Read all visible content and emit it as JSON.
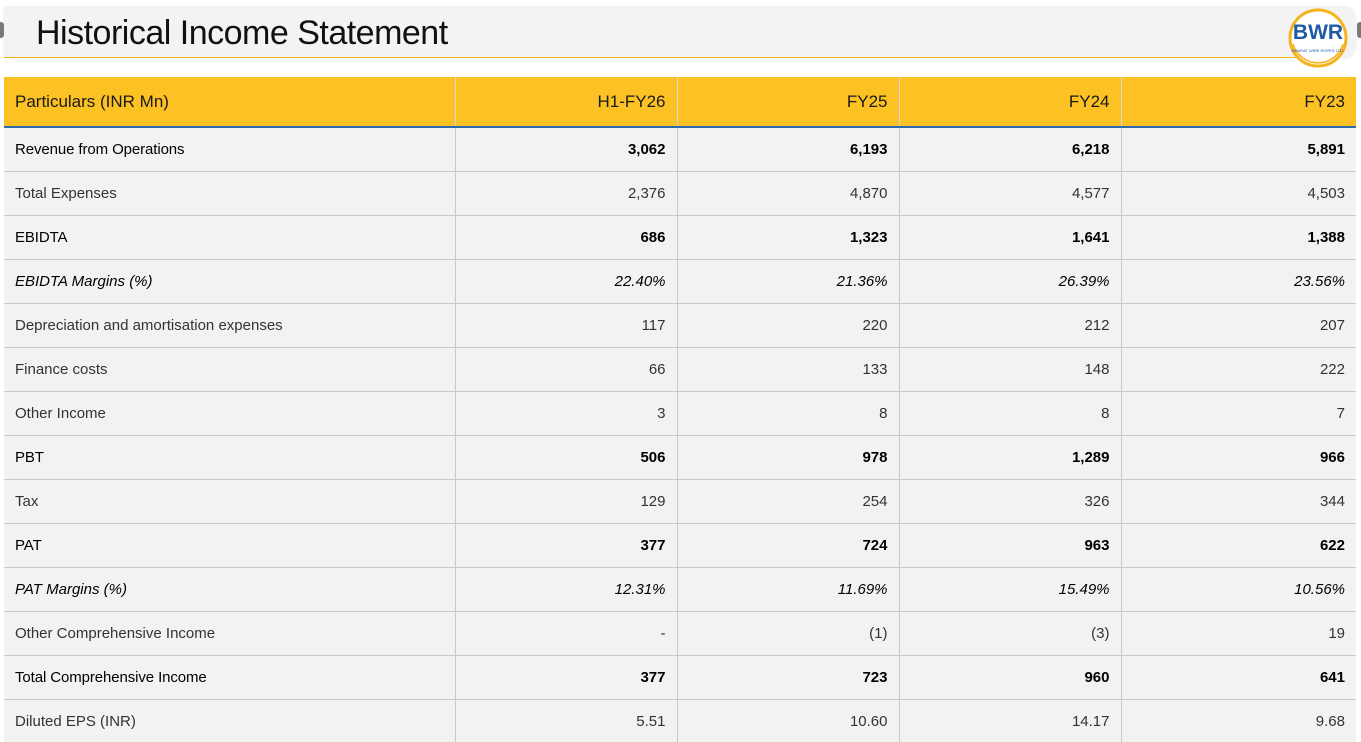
{
  "page": {
    "title": "Historical Income Statement"
  },
  "logo": {
    "text": "BWR",
    "subtext": "BHARAT WIRE ROPES LTD.",
    "colors": {
      "text": "#1f5aa6",
      "ring": "#f5b41e"
    }
  },
  "table": {
    "columns": [
      "Particulars (INR Mn)",
      "H1-FY26",
      "FY25",
      "FY24",
      "FY23"
    ],
    "rows": [
      {
        "label": "Revenue from Operations",
        "values": [
          "3,062",
          "6,193",
          "6,218",
          "5,891"
        ],
        "style": "bold"
      },
      {
        "label": "Total Expenses",
        "values": [
          "2,376",
          "4,870",
          "4,577",
          "4,503"
        ],
        "style": "light"
      },
      {
        "label": "EBIDTA",
        "values": [
          "686",
          "1,323",
          "1,641",
          "1,388"
        ],
        "style": "bold"
      },
      {
        "label": "EBIDTA Margins (%)",
        "values": [
          "22.40%",
          "21.36%",
          "26.39%",
          "23.56%"
        ],
        "style": "italic"
      },
      {
        "label": "Depreciation and amortisation expenses",
        "values": [
          "117",
          "220",
          "212",
          "207"
        ],
        "style": "light"
      },
      {
        "label": "Finance costs",
        "values": [
          "66",
          "133",
          "148",
          "222"
        ],
        "style": "light"
      },
      {
        "label": "Other Income",
        "values": [
          "3",
          "8",
          "8",
          "7"
        ],
        "style": "light"
      },
      {
        "label": "PBT",
        "values": [
          "506",
          "978",
          "1,289",
          "966"
        ],
        "style": "bold"
      },
      {
        "label": "Tax",
        "values": [
          "129",
          "254",
          "326",
          "344"
        ],
        "style": "light"
      },
      {
        "label": "PAT",
        "values": [
          "377",
          "724",
          "963",
          "622"
        ],
        "style": "bold"
      },
      {
        "label": "PAT Margins (%)",
        "values": [
          "12.31%",
          "11.69%",
          "15.49%",
          "10.56%"
        ],
        "style": "italic"
      },
      {
        "label": "Other Comprehensive Income",
        "values": [
          "-",
          "(1)",
          "(3)",
          "19"
        ],
        "style": "light"
      },
      {
        "label": "Total Comprehensive Income",
        "values": [
          "377",
          "723",
          "960",
          "641"
        ],
        "style": "bold"
      },
      {
        "label": "Diluted EPS (INR)",
        "values": [
          "5.51",
          "10.60",
          "14.17",
          "9.68"
        ],
        "style": "light"
      }
    ]
  },
  "colors": {
    "header_bg": "#fcc123",
    "row_bg": "#f2f2f2",
    "rule": "#2e6aa8"
  }
}
